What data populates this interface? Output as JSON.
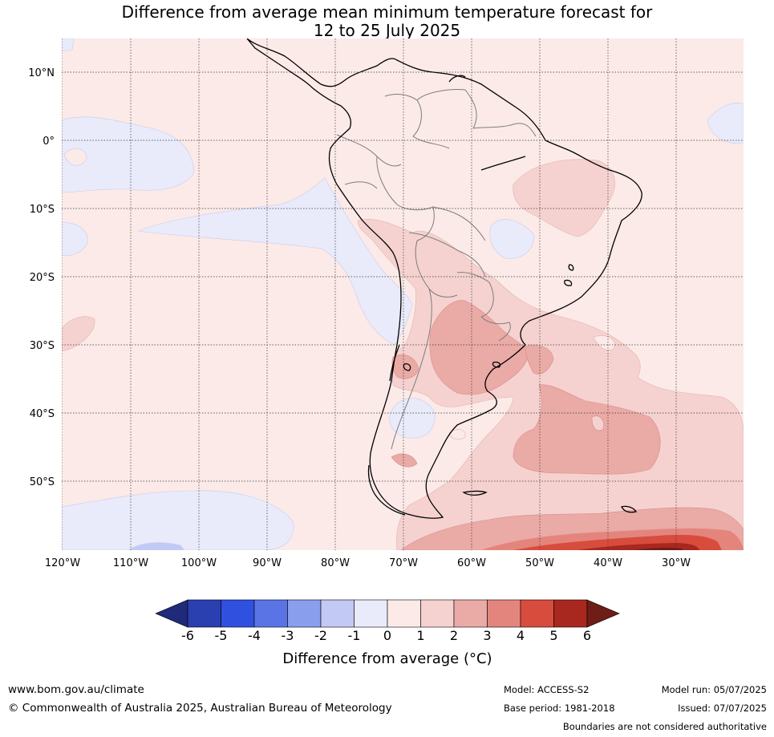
{
  "title_line1": "Difference from average mean minimum temperature forecast for",
  "title_line2": "12 to 25 July 2025",
  "lat_labels": [
    "10°N",
    "0°",
    "10°S",
    "20°S",
    "30°S",
    "40°S",
    "50°S"
  ],
  "lon_labels": [
    "120°W",
    "110°W",
    "100°W",
    "90°W",
    "80°W",
    "70°W",
    "60°W",
    "50°W",
    "40°W",
    "30°W"
  ],
  "colorbar": {
    "title": "Difference from average (°C)",
    "ticks": [
      "-6",
      "-5",
      "-4",
      "-3",
      "-2",
      "-1",
      "0",
      "1",
      "2",
      "3",
      "4",
      "5",
      "6"
    ],
    "colors": [
      "#1f2a7a",
      "#2a3fb0",
      "#3050e0",
      "#5a74e6",
      "#8a9eee",
      "#c2c9f4",
      "#e9ebfb",
      "#fbeae8",
      "#f5d2cf",
      "#eaaaa6",
      "#e4857d",
      "#d84c3e",
      "#a8281f",
      "#6e1d17"
    ]
  },
  "footer": {
    "website": "www.bom.gov.au/climate",
    "copyright": "© Commonwealth of Australia 2025, Australian Bureau of Meteorology",
    "model": "Model: ACCESS-S2",
    "base_period": "Base period: 1981-2018",
    "model_run": "Model run: 05/07/2025",
    "issued": "Issued: 07/07/2025",
    "disclaimer": "Boundaries are not considered authoritative"
  }
}
